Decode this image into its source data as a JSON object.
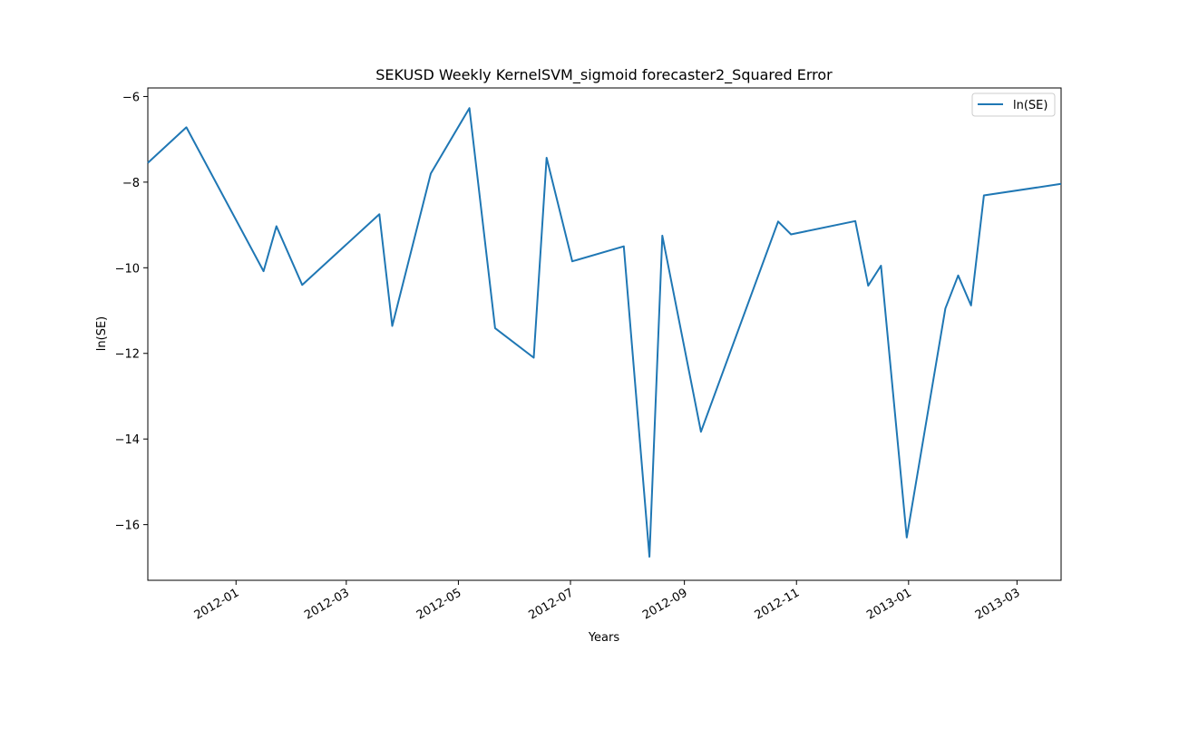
{
  "chart_data": {
    "type": "line",
    "title": "SEKUSD Weekly KernelSVM_sigmoid forecaster2_Squared Error",
    "xlabel": "Years",
    "ylabel": "ln(SE)",
    "xlim": [
      "2011-11-14",
      "2013-03-25"
    ],
    "ylim": [
      -17.3,
      -5.8
    ],
    "y_ticks": [
      -6,
      -8,
      -10,
      -12,
      -14,
      -16
    ],
    "x_ticks": [
      "2012-01",
      "2012-03",
      "2012-05",
      "2012-07",
      "2012-09",
      "2012-11",
      "2013-01",
      "2013-03"
    ],
    "legend": {
      "position": "top-right",
      "entries": [
        "ln(SE)"
      ]
    },
    "grid": false,
    "series": [
      {
        "name": "ln(SE)",
        "color": "#1f77b4",
        "points": [
          {
            "x": "2011-11-14",
            "y": -7.55
          },
          {
            "x": "2011-12-05",
            "y": -6.72
          },
          {
            "x": "2012-01-16",
            "y": -10.08
          },
          {
            "x": "2012-01-23",
            "y": -9.03
          },
          {
            "x": "2012-02-06",
            "y": -10.4
          },
          {
            "x": "2012-03-19",
            "y": -8.75
          },
          {
            "x": "2012-03-26",
            "y": -11.36
          },
          {
            "x": "2012-04-16",
            "y": -7.8
          },
          {
            "x": "2012-05-07",
            "y": -6.27
          },
          {
            "x": "2012-05-21",
            "y": -11.41
          },
          {
            "x": "2012-06-11",
            "y": -12.1
          },
          {
            "x": "2012-06-18",
            "y": -7.43
          },
          {
            "x": "2012-07-02",
            "y": -9.85
          },
          {
            "x": "2012-07-30",
            "y": -9.5
          },
          {
            "x": "2012-08-13",
            "y": -16.75
          },
          {
            "x": "2012-08-20",
            "y": -9.25
          },
          {
            "x": "2012-09-10",
            "y": -13.83
          },
          {
            "x": "2012-10-22",
            "y": -8.92
          },
          {
            "x": "2012-10-29",
            "y": -9.22
          },
          {
            "x": "2012-12-03",
            "y": -8.91
          },
          {
            "x": "2012-12-10",
            "y": -10.42
          },
          {
            "x": "2012-12-17",
            "y": -9.95
          },
          {
            "x": "2012-12-31",
            "y": -16.3
          },
          {
            "x": "2013-01-21",
            "y": -10.95
          },
          {
            "x": "2013-01-28",
            "y": -10.18
          },
          {
            "x": "2013-02-04",
            "y": -10.88
          },
          {
            "x": "2013-02-11",
            "y": -8.31
          },
          {
            "x": "2013-03-25",
            "y": -8.04
          }
        ]
      }
    ]
  }
}
